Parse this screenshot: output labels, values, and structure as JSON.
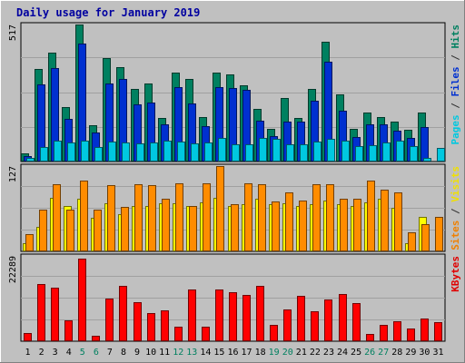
{
  "chart_data": {
    "type": "bar",
    "title": "Daily usage for January 2019",
    "days": [
      "1",
      "2",
      "3",
      "4",
      "5",
      "6",
      "7",
      "8",
      "9",
      "10",
      "11",
      "12",
      "13",
      "14",
      "15",
      "16",
      "17",
      "18",
      "19",
      "20",
      "21",
      "22",
      "23",
      "24",
      "25",
      "26",
      "27",
      "28",
      "29",
      "30",
      "31"
    ],
    "weekend_days": [
      "5",
      "6",
      "12",
      "13",
      "19",
      "20",
      "26",
      "27"
    ],
    "panels": [
      {
        "id": "pages-files-hits",
        "max_label": "517",
        "ylim": [
          0,
          517
        ],
        "right_label": [
          {
            "text": "Pages",
            "color": "#00c8e0"
          },
          {
            "text": " / ",
            "color": "#303030"
          },
          {
            "text": "Files",
            "color": "#0030d0"
          },
          {
            "text": " / ",
            "color": "#303030"
          },
          {
            "text": "Hits",
            "color": "#008060"
          }
        ],
        "series": [
          {
            "name": "Hits",
            "color": "#008060",
            "values": [
              32,
              348,
              412,
              204,
              517,
              138,
              390,
              356,
              275,
              296,
              164,
              337,
              310,
              168,
              334,
              328,
              286,
              198,
              124,
              240,
              164,
              275,
              452,
              254,
              124,
              186,
              169,
              152,
              120,
              186,
              0
            ]
          },
          {
            "name": "Files",
            "color": "#0030d0",
            "values": [
              20,
              290,
              352,
              160,
              444,
              110,
              296,
              312,
              216,
              222,
              142,
              280,
              220,
              134,
              280,
              278,
              270,
              153,
              96,
              150,
              150,
              228,
              375,
              192,
              93,
              140,
              140,
              117,
              90,
              130,
              0
            ]
          },
          {
            "name": "Pages",
            "color": "#00c8e0",
            "values": [
              15,
              55,
              80,
              72,
              80,
              55,
              76,
              72,
              70,
              72,
              80,
              76,
              70,
              72,
              88,
              65,
              65,
              88,
              86,
              65,
              65,
              76,
              85,
              80,
              58,
              62,
              72,
              80,
              58,
              15,
              52
            ]
          }
        ]
      },
      {
        "id": "sites-visits",
        "max_label": "127",
        "ylim": [
          0,
          127
        ],
        "right_label": [
          {
            "text": "Sites",
            "color": "#f08000"
          },
          {
            "text": " / ",
            "color": "#303030"
          },
          {
            "text": "Visits",
            "color": "#f0e000"
          }
        ],
        "series": [
          {
            "name": "Visits",
            "color": "#ffff00",
            "values": [
              12,
              37,
              80,
              68,
              78,
              50,
              72,
              55,
              68,
              68,
              72,
              72,
              68,
              73,
              80,
              68,
              70,
              78,
              70,
              72,
              68,
              70,
              75,
              70,
              68,
              73,
              78,
              65,
              12,
              52,
              0
            ]
          },
          {
            "name": "Sites",
            "color": "#ff8c00",
            "values": [
              25,
              62,
              100,
              62,
              106,
              62,
              98,
              66,
              100,
              98,
              78,
              102,
              68,
              102,
              127,
              70,
              102,
              100,
              74,
              88,
              75,
              100,
              100,
              78,
              78,
              106,
              92,
              88,
              28,
              40,
              52
            ]
          }
        ]
      },
      {
        "id": "kbytes",
        "max_label": "22289",
        "ylim": [
          0,
          22289
        ],
        "right_label": [
          {
            "text": "KBytes",
            "color": "#e00000"
          }
        ],
        "series": [
          {
            "name": "KBytes",
            "color": "#ff0000",
            "values": [
              2200,
              15000,
              13900,
              5500,
              21600,
              1400,
              11200,
              14400,
              10200,
              7400,
              8100,
              3900,
              13500,
              3900,
              13500,
              12900,
              12200,
              14400,
              4300,
              8200,
              11900,
              7900,
              10800,
              12300,
              9900,
              1900,
              4200,
              5300,
              3300,
              5900,
              4900
            ]
          }
        ]
      }
    ]
  }
}
